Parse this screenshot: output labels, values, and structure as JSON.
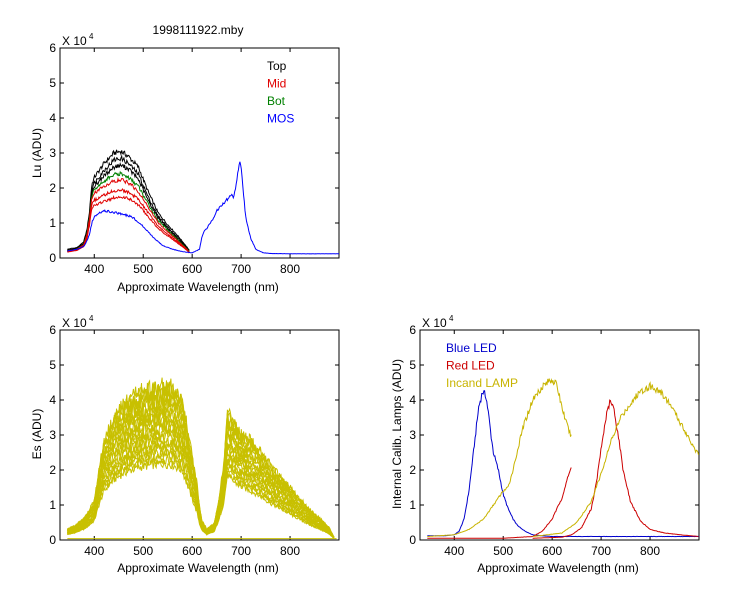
{
  "figure": {
    "title": "1998111922.mby"
  },
  "chart_data": [
    {
      "id": "lu",
      "type": "line",
      "xlabel": "Approximate Wavelength (nm)",
      "ylabel": "Lu (ADU)",
      "scale_label": "X 10",
      "scale_exp": "4",
      "xlim": [
        330,
        900
      ],
      "ylim": [
        0,
        6
      ],
      "xticks": [
        400,
        500,
        600,
        700,
        800
      ],
      "yticks": [
        0,
        1,
        2,
        3,
        4,
        5,
        6
      ],
      "legend_position": "top-right",
      "legend": [
        {
          "name": "Top",
          "color": "#000000"
        },
        {
          "name": "Mid",
          "color": "#e00000"
        },
        {
          "name": "Bot",
          "color": "#008000"
        },
        {
          "name": "MOS",
          "color": "#0000ff"
        }
      ],
      "series": [
        {
          "name": "Top",
          "color": "#000000",
          "x": [
            345,
            365,
            378,
            385,
            390,
            395,
            400,
            420,
            440,
            455,
            470,
            490,
            510,
            530,
            550,
            570,
            590,
            595
          ],
          "y": [
            0.25,
            0.3,
            0.45,
            0.8,
            1.3,
            2.1,
            2.3,
            2.7,
            3.0,
            3.05,
            2.9,
            2.6,
            1.9,
            1.3,
            0.95,
            0.65,
            0.3,
            0.2
          ]
        },
        {
          "name": "Top",
          "color": "#000000",
          "x": [
            345,
            365,
            378,
            385,
            390,
            395,
            400,
            420,
            440,
            455,
            470,
            490,
            510,
            530,
            550,
            570,
            590,
            595
          ],
          "y": [
            0.22,
            0.28,
            0.42,
            0.75,
            1.25,
            1.95,
            2.15,
            2.5,
            2.8,
            2.85,
            2.7,
            2.4,
            1.75,
            1.2,
            0.88,
            0.6,
            0.28,
            0.18
          ]
        },
        {
          "name": "Top",
          "color": "#000000",
          "x": [
            345,
            365,
            378,
            385,
            390,
            395,
            400,
            420,
            440,
            455,
            470,
            490,
            510,
            530,
            550,
            570,
            590,
            595
          ],
          "y": [
            0.2,
            0.26,
            0.4,
            0.7,
            1.2,
            1.85,
            2.05,
            2.35,
            2.6,
            2.65,
            2.55,
            2.25,
            1.65,
            1.15,
            0.84,
            0.56,
            0.26,
            0.17
          ]
        },
        {
          "name": "Bot",
          "color": "#008000",
          "x": [
            345,
            365,
            378,
            385,
            390,
            395,
            400,
            420,
            440,
            455,
            470,
            490,
            510,
            530,
            550,
            570,
            590,
            595
          ],
          "y": [
            0.2,
            0.25,
            0.38,
            0.68,
            1.15,
            1.8,
            1.95,
            2.2,
            2.38,
            2.4,
            2.3,
            2.05,
            1.55,
            1.08,
            0.8,
            0.53,
            0.25,
            0.16
          ]
        },
        {
          "name": "Mid",
          "color": "#e00000",
          "x": [
            345,
            365,
            378,
            385,
            390,
            395,
            400,
            420,
            440,
            455,
            470,
            490,
            510,
            530,
            550,
            570,
            590,
            595
          ],
          "y": [
            0.2,
            0.25,
            0.37,
            0.65,
            1.1,
            1.7,
            1.85,
            2.05,
            2.2,
            2.25,
            2.15,
            1.9,
            1.45,
            1.02,
            0.75,
            0.5,
            0.24,
            0.15
          ]
        },
        {
          "name": "Mid",
          "color": "#e00000",
          "x": [
            345,
            365,
            378,
            385,
            390,
            395,
            400,
            420,
            440,
            455,
            470,
            490,
            510,
            530,
            550,
            570,
            590,
            595
          ],
          "y": [
            0.18,
            0.23,
            0.34,
            0.6,
            1.0,
            1.55,
            1.65,
            1.8,
            1.92,
            1.95,
            1.88,
            1.68,
            1.3,
            0.92,
            0.68,
            0.46,
            0.22,
            0.14
          ]
        },
        {
          "name": "Mid",
          "color": "#e00000",
          "x": [
            345,
            365,
            378,
            385,
            390,
            395,
            400,
            420,
            440,
            455,
            470,
            490,
            510,
            530,
            550,
            570,
            590,
            595
          ],
          "y": [
            0.17,
            0.22,
            0.32,
            0.56,
            0.92,
            1.4,
            1.5,
            1.62,
            1.72,
            1.75,
            1.7,
            1.52,
            1.18,
            0.85,
            0.63,
            0.43,
            0.21,
            0.13
          ]
        },
        {
          "name": "MOS",
          "color": "#0000ff",
          "x": [
            345,
            365,
            380,
            390,
            395,
            400,
            420,
            440,
            460,
            480,
            500,
            520,
            540,
            560,
            580,
            600,
            615,
            620,
            625,
            630,
            640,
            650,
            660,
            670,
            680,
            685,
            690,
            695,
            698,
            700,
            705,
            710,
            720,
            730,
            745,
            760,
            800,
            900
          ],
          "y": [
            0.2,
            0.25,
            0.35,
            0.65,
            1.0,
            1.2,
            1.35,
            1.3,
            1.25,
            1.15,
            0.9,
            0.6,
            0.35,
            0.25,
            0.18,
            0.15,
            0.25,
            0.6,
            0.8,
            0.85,
            1.05,
            1.35,
            1.5,
            1.65,
            1.8,
            1.75,
            2.1,
            2.6,
            2.8,
            2.6,
            1.8,
            1.1,
            0.55,
            0.25,
            0.15,
            0.13,
            0.12,
            0.12
          ]
        }
      ]
    },
    {
      "id": "es",
      "type": "line",
      "xlabel": "Approximate Wavelength (nm)",
      "ylabel": "Es  (ADU)",
      "scale_label": "X 10",
      "scale_exp": "4",
      "xlim": [
        330,
        900
      ],
      "ylim": [
        0,
        6
      ],
      "xticks": [
        400,
        500,
        600,
        700,
        800
      ],
      "yticks": [
        0,
        1,
        2,
        3,
        4,
        5,
        6
      ],
      "color": "#c8c000",
      "envelope_x": [
        345,
        360,
        380,
        400,
        410,
        420,
        440,
        460,
        480,
        500,
        520,
        540,
        560,
        580,
        600,
        610,
        615,
        620,
        630,
        645,
        655,
        665,
        672,
        680,
        700,
        720,
        740,
        760,
        780,
        800,
        820,
        840,
        860,
        880,
        890
      ],
      "envelope_shape": [
        0.2,
        0.26,
        0.4,
        0.7,
        1.3,
        1.8,
        2.2,
        2.45,
        2.6,
        2.7,
        2.75,
        2.8,
        2.75,
        2.55,
        1.5,
        1.0,
        0.6,
        0.35,
        0.2,
        0.3,
        0.75,
        1.4,
        2.4,
        2.2,
        1.95,
        1.8,
        1.6,
        1.35,
        1.15,
        0.95,
        0.75,
        0.55,
        0.4,
        0.22,
        0.05
      ],
      "scales": [
        0.78,
        0.82,
        0.86,
        0.9,
        0.94,
        0.98,
        1.02,
        1.06,
        1.1,
        1.14,
        1.18,
        1.22,
        1.26,
        1.3,
        1.34,
        1.38,
        1.42,
        1.46,
        1.5,
        1.54,
        1.58
      ]
    },
    {
      "id": "lamps",
      "type": "line",
      "xlabel": "Approximate Wavelength (nm)",
      "ylabel": "Internal Calib. Lamps (ADU)",
      "scale_label": "X 10",
      "scale_exp": "4",
      "xlim": [
        330,
        900
      ],
      "ylim": [
        0,
        6
      ],
      "xticks": [
        400,
        500,
        600,
        700,
        800
      ],
      "yticks": [
        0,
        1,
        2,
        3,
        4,
        5,
        6
      ],
      "legend_position": "top-left",
      "legend": [
        {
          "name": "Blue LED",
          "color": "#0000cc"
        },
        {
          "name": "Red LED",
          "color": "#cc0000"
        },
        {
          "name": "Incand LAMP",
          "color": "#c8b400"
        }
      ],
      "series": [
        {
          "name": "Blue LED",
          "color": "#0000cc",
          "x": [
            345,
            380,
            400,
            410,
            420,
            430,
            440,
            450,
            458,
            465,
            470,
            475,
            480,
            490,
            500,
            510,
            520,
            530,
            545,
            560,
            580,
            600,
            640,
            700,
            800,
            900
          ],
          "y": [
            0.12,
            0.12,
            0.15,
            0.25,
            0.6,
            1.4,
            2.6,
            3.8,
            4.25,
            4.1,
            3.6,
            3.0,
            2.5,
            2.0,
            1.3,
            0.9,
            0.6,
            0.4,
            0.25,
            0.15,
            0.12,
            0.1,
            0.1,
            0.1,
            0.1,
            0.1
          ]
        },
        {
          "name": "Red LED",
          "color": "#cc0000",
          "x": [
            345,
            500,
            560,
            580,
            600,
            620,
            630,
            640
          ],
          "y": [
            0.05,
            0.05,
            0.1,
            0.25,
            0.6,
            1.2,
            1.7,
            2.1
          ]
        },
        {
          "name": "Red LED",
          "color": "#cc0000",
          "x": [
            560,
            620,
            640,
            660,
            680,
            690,
            700,
            710,
            718,
            725,
            735,
            745,
            760,
            780,
            800,
            830,
            860,
            900
          ],
          "y": [
            0.05,
            0.08,
            0.15,
            0.35,
            0.9,
            1.6,
            2.6,
            3.5,
            3.95,
            3.8,
            3.0,
            2.0,
            1.1,
            0.55,
            0.3,
            0.2,
            0.15,
            0.1
          ]
        },
        {
          "name": "Incand LAMP",
          "color": "#c8b400",
          "x": [
            345,
            400,
            430,
            460,
            480,
            500,
            510,
            520,
            540,
            560,
            580,
            600,
            610,
            620,
            630,
            640
          ],
          "y": [
            0.1,
            0.15,
            0.3,
            0.6,
            1.0,
            1.4,
            1.5,
            2.0,
            3.2,
            4.0,
            4.4,
            4.6,
            4.4,
            3.8,
            3.3,
            2.9
          ]
        },
        {
          "name": "Incand LAMP",
          "color": "#c8b400",
          "x": [
            560,
            620,
            650,
            680,
            700,
            720,
            740,
            760,
            780,
            800,
            820,
            840,
            860,
            880,
            900
          ],
          "y": [
            0.1,
            0.2,
            0.5,
            1.1,
            1.9,
            2.8,
            3.5,
            3.9,
            4.25,
            4.4,
            4.25,
            3.9,
            3.4,
            2.9,
            2.4
          ]
        }
      ]
    }
  ]
}
